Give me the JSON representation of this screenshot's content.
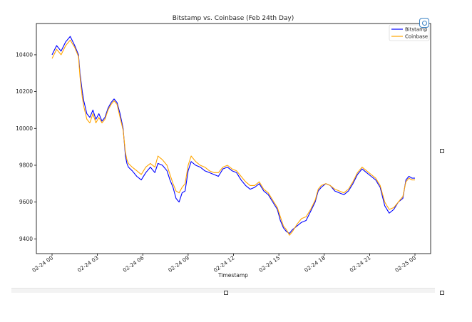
{
  "chart_data": {
    "type": "line",
    "title": "Bitstamp vs. Coinbase (Feb 24th Day)",
    "xlabel": "Timestamp",
    "ylabel": "",
    "xlim": [
      0,
      24
    ],
    "ylim": [
      9320,
      10570
    ],
    "x_ticks": [
      {
        "x": 0,
        "label": "02-24 00"
      },
      {
        "x": 3,
        "label": "02-24 03"
      },
      {
        "x": 6,
        "label": "02-24 06"
      },
      {
        "x": 9,
        "label": "02-24 09"
      },
      {
        "x": 12,
        "label": "02-24 12"
      },
      {
        "x": 15,
        "label": "02-24 15"
      },
      {
        "x": 18,
        "label": "02-24 18"
      },
      {
        "x": 21,
        "label": "02-24 21"
      },
      {
        "x": 24,
        "label": "02-25 00"
      }
    ],
    "y_ticks": [
      9400,
      9600,
      9800,
      10000,
      10200,
      10400
    ],
    "legend_position": "top-right",
    "grid": false,
    "series": [
      {
        "name": "Bitstamp",
        "color": "#0000ff",
        "x": [
          0,
          0.3,
          0.6,
          0.9,
          1.2,
          1.5,
          1.75,
          1.85,
          2.0,
          2.1,
          2.3,
          2.5,
          2.7,
          2.9,
          3.1,
          3.3,
          3.5,
          3.7,
          3.9,
          4.1,
          4.3,
          4.5,
          4.7,
          4.85,
          4.95,
          5.05,
          5.3,
          5.6,
          5.9,
          6.2,
          6.5,
          6.8,
          7.0,
          7.3,
          7.6,
          7.8,
          8.0,
          8.2,
          8.4,
          8.6,
          8.8,
          9.0,
          9.2,
          9.5,
          9.8,
          10.1,
          10.4,
          10.7,
          11.0,
          11.3,
          11.6,
          11.9,
          12.2,
          12.5,
          12.8,
          13.1,
          13.4,
          13.7,
          14.0,
          14.3,
          14.6,
          14.9,
          15.1,
          15.3,
          15.5,
          15.7,
          15.9,
          16.2,
          16.5,
          16.8,
          17.1,
          17.4,
          17.6,
          17.8,
          18.1,
          18.4,
          18.7,
          19.0,
          19.3,
          19.6,
          19.9,
          20.2,
          20.5,
          20.8,
          21.1,
          21.4,
          21.7,
          22.0,
          22.3,
          22.6,
          22.9,
          23.2,
          23.4,
          23.6,
          23.8,
          24.0
        ],
        "values": [
          10400,
          10450,
          10420,
          10470,
          10500,
          10450,
          10400,
          10300,
          10200,
          10150,
          10080,
          10060,
          10100,
          10050,
          10080,
          10040,
          10060,
          10110,
          10140,
          10160,
          10140,
          10080,
          10000,
          9850,
          9810,
          9790,
          9770,
          9740,
          9720,
          9760,
          9790,
          9760,
          9810,
          9800,
          9770,
          9720,
          9680,
          9620,
          9600,
          9650,
          9660,
          9770,
          9820,
          9800,
          9790,
          9770,
          9760,
          9750,
          9740,
          9780,
          9790,
          9770,
          9760,
          9720,
          9690,
          9670,
          9680,
          9700,
          9660,
          9640,
          9600,
          9560,
          9500,
          9460,
          9440,
          9430,
          9450,
          9470,
          9490,
          9500,
          9550,
          9600,
          9660,
          9680,
          9700,
          9690,
          9660,
          9650,
          9640,
          9660,
          9700,
          9750,
          9780,
          9760,
          9740,
          9720,
          9680,
          9580,
          9540,
          9560,
          9600,
          9620,
          9720,
          9740,
          9730,
          9730
        ]
      },
      {
        "name": "Coinbase",
        "color": "#ffa500",
        "x": [
          0,
          0.3,
          0.6,
          0.9,
          1.2,
          1.5,
          1.75,
          1.85,
          2.0,
          2.1,
          2.3,
          2.5,
          2.7,
          2.9,
          3.1,
          3.3,
          3.5,
          3.7,
          3.9,
          4.1,
          4.3,
          4.5,
          4.7,
          4.85,
          4.95,
          5.05,
          5.3,
          5.6,
          5.9,
          6.2,
          6.5,
          6.8,
          7.0,
          7.3,
          7.6,
          7.8,
          8.0,
          8.2,
          8.4,
          8.6,
          8.8,
          9.0,
          9.2,
          9.5,
          9.8,
          10.1,
          10.4,
          10.7,
          11.0,
          11.3,
          11.6,
          11.9,
          12.2,
          12.5,
          12.8,
          13.1,
          13.4,
          13.7,
          14.0,
          14.3,
          14.6,
          14.9,
          15.1,
          15.3,
          15.5,
          15.7,
          15.9,
          16.2,
          16.5,
          16.8,
          17.1,
          17.4,
          17.6,
          17.8,
          18.1,
          18.4,
          18.7,
          19.0,
          19.3,
          19.6,
          19.9,
          20.2,
          20.5,
          20.8,
          21.1,
          21.4,
          21.7,
          22.0,
          22.3,
          22.6,
          22.9,
          23.2,
          23.4,
          23.6,
          23.8,
          24.0
        ],
        "values": [
          10380,
          10430,
          10400,
          10450,
          10480,
          10440,
          10390,
          10280,
          10170,
          10120,
          10050,
          10030,
          10080,
          10030,
          10060,
          10030,
          10050,
          10100,
          10130,
          10150,
          10130,
          10060,
          9990,
          9870,
          9830,
          9810,
          9790,
          9770,
          9750,
          9790,
          9810,
          9790,
          9850,
          9830,
          9800,
          9750,
          9700,
          9660,
          9650,
          9680,
          9700,
          9800,
          9850,
          9820,
          9800,
          9790,
          9770,
          9760,
          9760,
          9790,
          9800,
          9780,
          9770,
          9740,
          9710,
          9690,
          9690,
          9710,
          9670,
          9650,
          9610,
          9570,
          9520,
          9470,
          9450,
          9420,
          9440,
          9480,
          9510,
          9520,
          9560,
          9610,
          9670,
          9690,
          9700,
          9690,
          9670,
          9660,
          9650,
          9670,
          9710,
          9760,
          9790,
          9770,
          9750,
          9730,
          9690,
          9600,
          9560,
          9570,
          9600,
          9630,
          9710,
          9730,
          9720,
          9720
        ]
      }
    ]
  }
}
